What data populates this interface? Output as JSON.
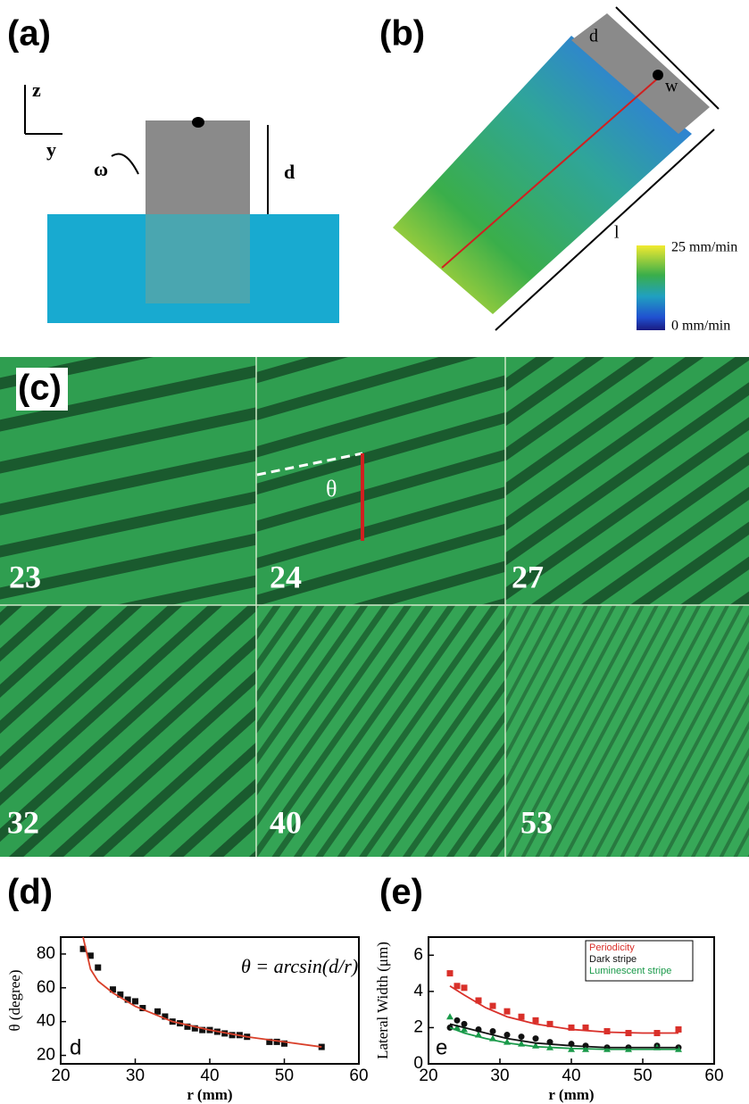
{
  "panels": {
    "a": {
      "label": "(a)",
      "axis_z": "z",
      "axis_y": "y",
      "omega": "ω",
      "height": "d"
    },
    "b": {
      "label": "(b)",
      "depth": "d",
      "width": "w",
      "length": "l",
      "scale_max": "25 mm/min",
      "scale_min": "0 mm/min"
    },
    "c": {
      "label": "(c)",
      "angle": "θ",
      "tiles": [
        "23",
        "24",
        "27",
        "32",
        "40",
        "53"
      ]
    }
  },
  "chart_data": [
    {
      "type": "scatter",
      "label": "(d)",
      "annotation": "d",
      "formula": "θ = arcsin(d/r)",
      "xlabel": "r (mm)",
      "ylabel": "θ (degree)",
      "xlim": [
        20,
        60
      ],
      "xticks": [
        20,
        30,
        40,
        50,
        60
      ],
      "ylim": [
        15,
        90
      ],
      "yticks": [
        20,
        40,
        60,
        80
      ],
      "series": [
        {
          "color": "#111111",
          "marker": "square",
          "x": [
            23,
            24,
            25,
            27,
            28,
            29,
            30,
            31,
            33,
            34,
            35,
            36,
            37,
            38,
            39,
            40,
            41,
            42,
            43,
            44,
            45,
            48,
            49,
            50,
            55
          ],
          "values": [
            83,
            79,
            72,
            59,
            56,
            53,
            52,
            48,
            46,
            43,
            40,
            39,
            37,
            36,
            35,
            35,
            34,
            33,
            32,
            32,
            31,
            28,
            28,
            27,
            25
          ]
        },
        {
          "color": "#d9402a",
          "marker": "line",
          "x": [
            23,
            24,
            25,
            27,
            30,
            35,
            40,
            45,
            50,
            55
          ],
          "values": [
            90,
            71,
            64,
            57,
            49,
            40,
            35,
            31,
            28,
            25
          ]
        }
      ]
    },
    {
      "type": "scatter",
      "label": "(e)",
      "annotation": "e",
      "xlabel": "r (mm)",
      "ylabel": "Lateral Width (μm)",
      "xlim": [
        20,
        60
      ],
      "xticks": [
        20,
        30,
        40,
        50,
        60
      ],
      "ylim": [
        0,
        7
      ],
      "yticks": [
        0,
        2,
        4,
        6
      ],
      "legend": "upper right",
      "series": [
        {
          "name": "Periodicity",
          "color": "#d9302a",
          "marker": "square",
          "x": [
            23,
            24,
            25,
            27,
            29,
            31,
            33,
            35,
            37,
            40,
            42,
            45,
            48,
            52,
            55
          ],
          "values": [
            5.0,
            4.3,
            4.2,
            3.5,
            3.2,
            2.9,
            2.6,
            2.4,
            2.2,
            2.0,
            2.0,
            1.8,
            1.7,
            1.7,
            1.9
          ]
        },
        {
          "name": "Dark stripe",
          "color": "#111111",
          "marker": "circle",
          "x": [
            23,
            24,
            25,
            27,
            29,
            31,
            33,
            35,
            37,
            40,
            42,
            45,
            48,
            52,
            55
          ],
          "values": [
            2.0,
            2.4,
            2.2,
            1.9,
            1.8,
            1.6,
            1.5,
            1.4,
            1.2,
            1.1,
            1.0,
            0.9,
            0.9,
            1.0,
            0.9
          ]
        },
        {
          "name": "Luminescent stripe",
          "color": "#1a9a4a",
          "marker": "triangle",
          "x": [
            23,
            24,
            25,
            27,
            29,
            31,
            33,
            35,
            37,
            40,
            42,
            45,
            48,
            52,
            55
          ],
          "values": [
            2.6,
            2.0,
            1.9,
            1.6,
            1.4,
            1.2,
            1.1,
            1.0,
            0.9,
            0.8,
            0.8,
            0.8,
            0.8,
            0.9,
            0.8
          ]
        },
        {
          "color": "#d9302a",
          "marker": "line",
          "x": [
            23,
            25,
            28,
            31,
            35,
            40,
            45,
            50,
            55
          ],
          "values": [
            4.3,
            3.8,
            3.1,
            2.6,
            2.2,
            1.9,
            1.75,
            1.7,
            1.7
          ]
        },
        {
          "color": "#111111",
          "marker": "line",
          "x": [
            23,
            25,
            28,
            31,
            35,
            40,
            45,
            50,
            55
          ],
          "values": [
            2.2,
            2.0,
            1.7,
            1.4,
            1.15,
            1.0,
            0.9,
            0.9,
            0.9
          ]
        },
        {
          "color": "#1a9a4a",
          "marker": "line",
          "x": [
            23,
            25,
            28,
            31,
            35,
            40,
            45,
            50,
            55
          ],
          "values": [
            2.0,
            1.7,
            1.4,
            1.15,
            0.95,
            0.85,
            0.8,
            0.8,
            0.8
          ]
        }
      ]
    }
  ]
}
